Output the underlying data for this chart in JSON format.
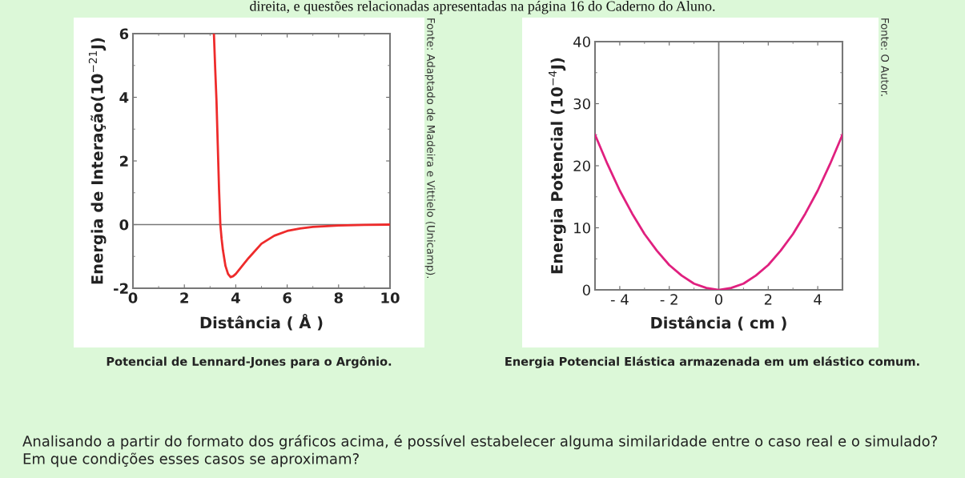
{
  "chart_data": [
    {
      "type": "line",
      "xlabel": "Distância ( Å )",
      "ylabel": "Energia de Interação(10$^{−21}$J)",
      "xlim": [
        0,
        10
      ],
      "ylim": [
        -2,
        6
      ],
      "xticks": [
        0,
        2,
        4,
        6,
        8,
        10
      ],
      "yticks": [
        -2,
        0,
        2,
        4,
        6
      ],
      "ref_lines": [
        {
          "axis": "y",
          "value": 0,
          "color": "#777777"
        }
      ],
      "series": [
        {
          "color": "#ee2b2b",
          "x": [
            3.15,
            3.2,
            3.25,
            3.3,
            3.35,
            3.4,
            3.45,
            3.5,
            3.6,
            3.7,
            3.8,
            3.9,
            4.0,
            4.2,
            4.5,
            5.0,
            5.5,
            6.0,
            6.5,
            7.0,
            8.0,
            9.0,
            10.0
          ],
          "values": [
            6,
            4.9,
            3.9,
            2.5,
            1.1,
            0,
            -0.45,
            -0.8,
            -1.3,
            -1.55,
            -1.65,
            -1.62,
            -1.55,
            -1.35,
            -1.05,
            -0.6,
            -0.35,
            -0.2,
            -0.12,
            -0.07,
            -0.03,
            -0.01,
            0
          ]
        }
      ],
      "annotations": [
        "Fonte: Adaptado de Madeira e Vittielo (Unicamp).",
        "Potencial de Lennard-Jones para o Argônio.",
        "direita, e questões relacionadas apresentadas na página 16 do Caderno do Aluno.",
        "Analisando a partir do formato dos gráficos acima, é possível estabelecer alguma similaridade entre o caso real e o simulado? Em que condições esses casos se aproximam?"
      ]
    },
    {
      "type": "line",
      "xlabel": "Distância ( cm )",
      "ylabel": "Energia Potencial (10$^{−4}$J)",
      "xlim": [
        -5,
        5
      ],
      "ylim": [
        0,
        40
      ],
      "xticks": [
        {
          "value": -4,
          "label": "- 4"
        },
        {
          "value": -2,
          "label": "- 2"
        },
        0,
        2,
        4
      ],
      "yticks": [
        0,
        10,
        20,
        30,
        40
      ],
      "ref_lines": [
        {
          "axis": "x",
          "value": 0,
          "color": "#777777"
        }
      ],
      "series": [
        {
          "color": "#e0207f",
          "x": [
            -5,
            -4.5,
            -4,
            -3.5,
            -3,
            -2.5,
            -2,
            -1.5,
            -1,
            -0.5,
            0,
            0.5,
            1,
            1.5,
            2,
            2.5,
            3,
            3.5,
            4,
            4.5,
            5
          ],
          "values": [
            25,
            20.3,
            16,
            12.3,
            9,
            6.3,
            4,
            2.3,
            1,
            0.3,
            0,
            0.3,
            1,
            2.3,
            4,
            6.3,
            9,
            12.3,
            16,
            20.3,
            25
          ]
        }
      ],
      "annotations": [
        "Fonte: O Autor.",
        "Energia Potencial Elástica armazenada em um elástico comum."
      ]
    }
  ]
}
